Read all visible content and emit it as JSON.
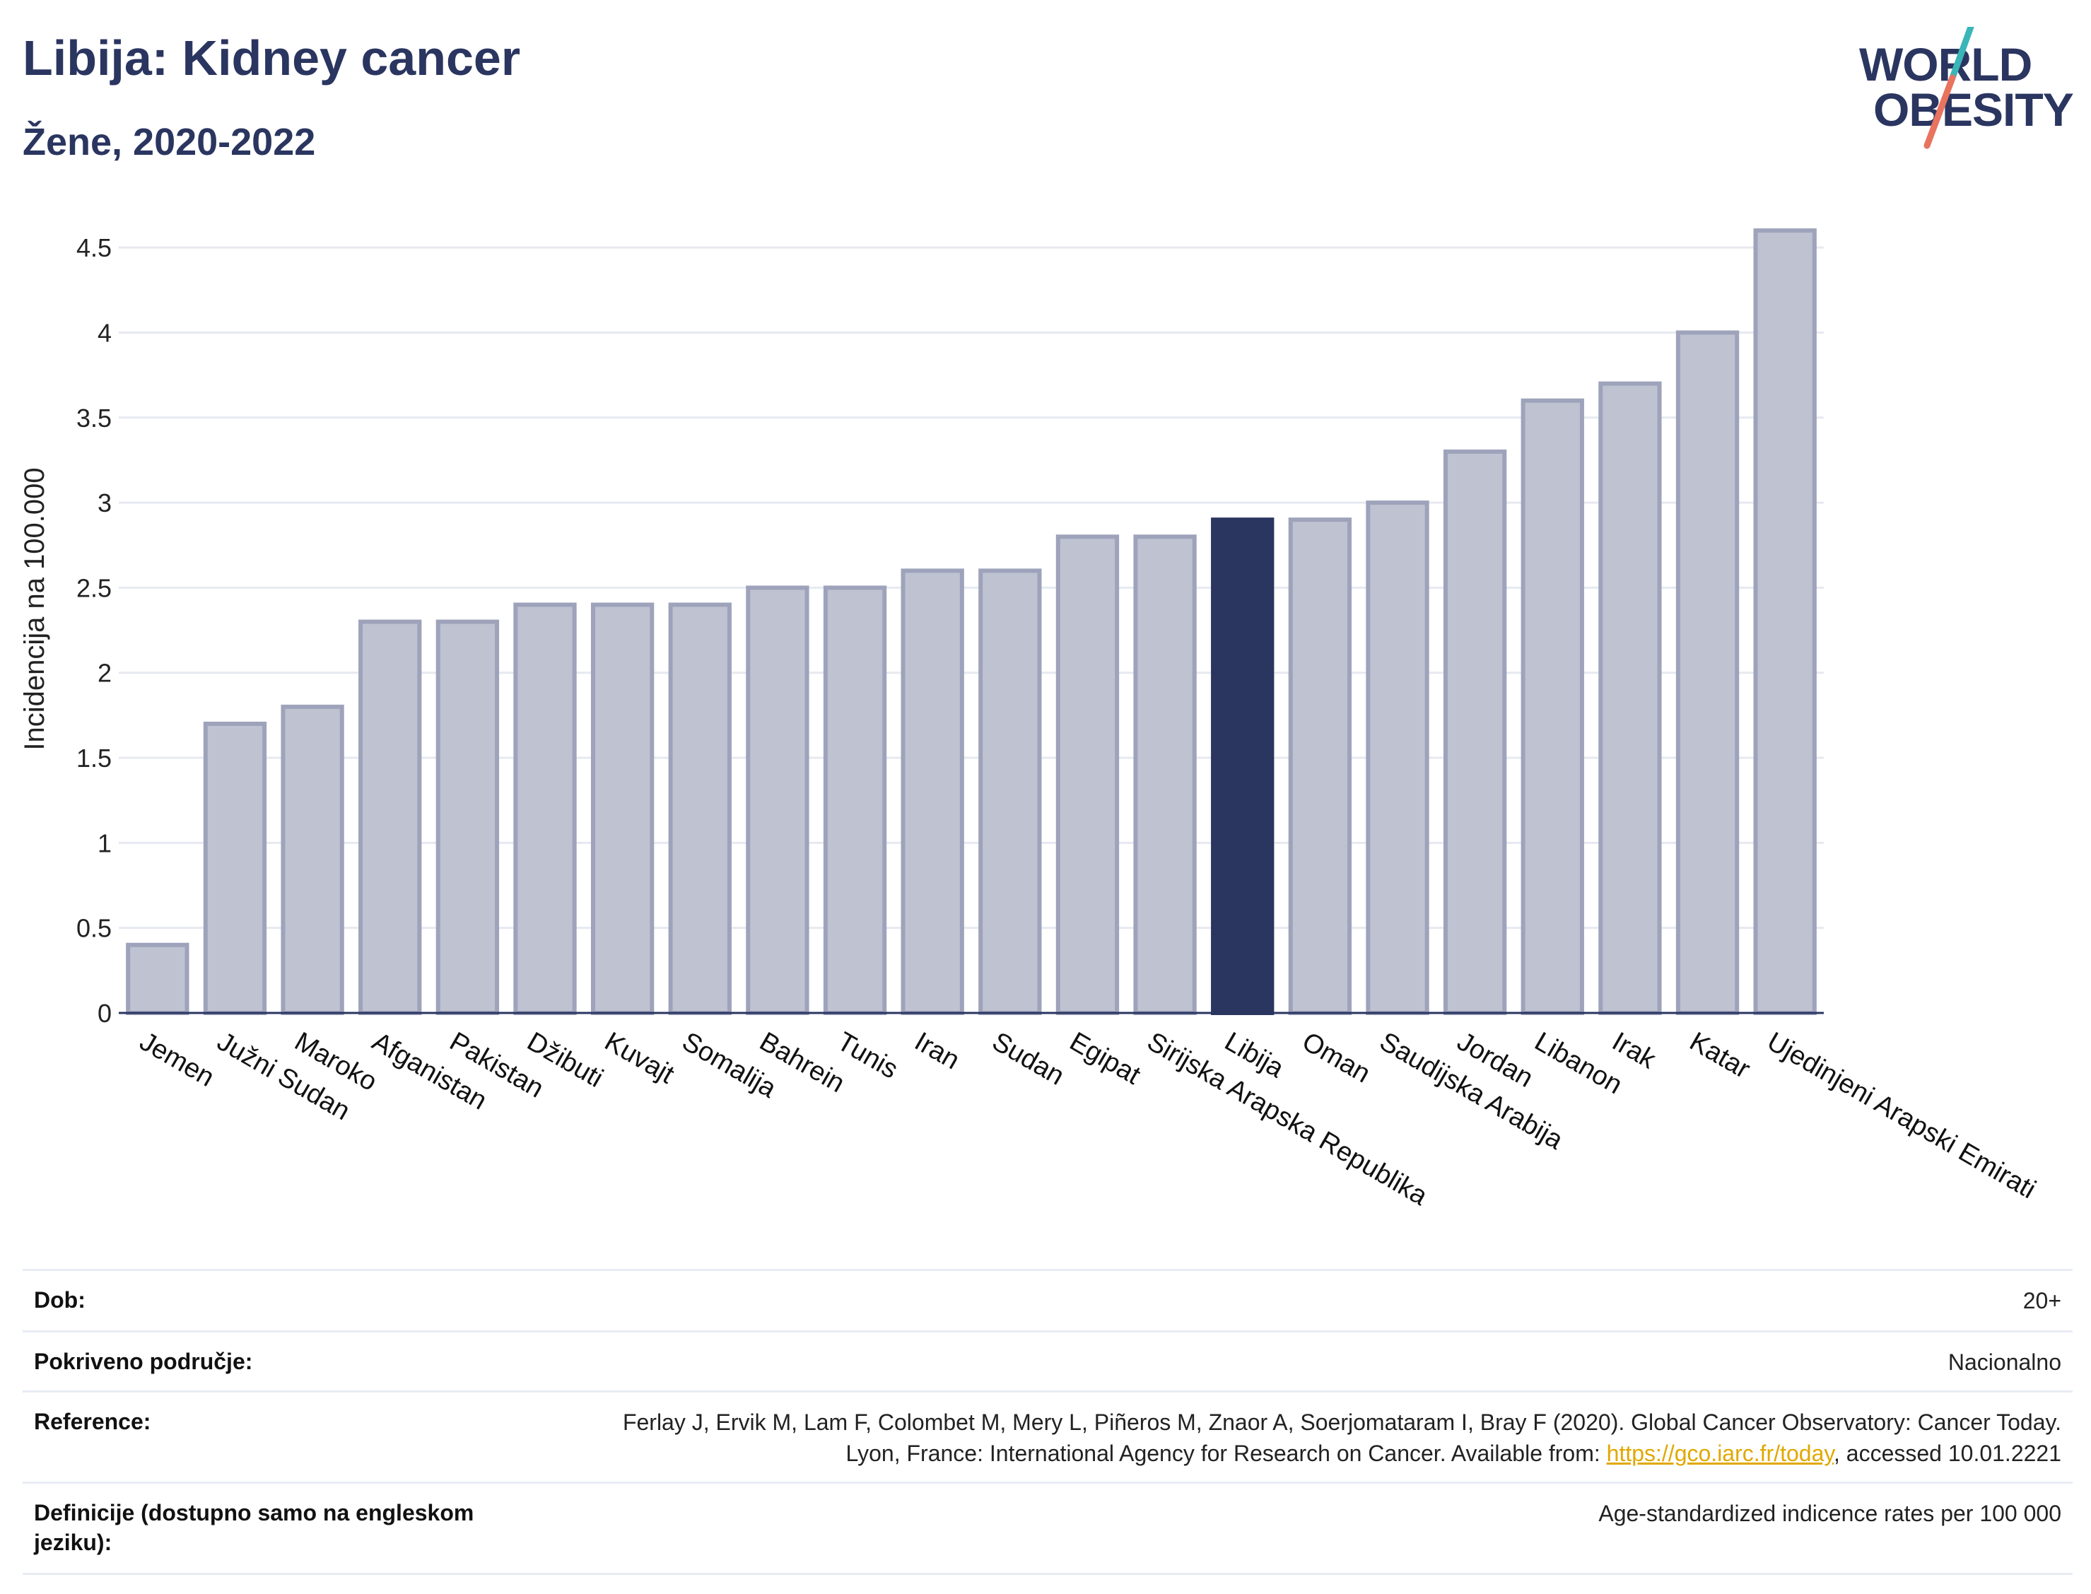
{
  "header": {
    "title": "Libija: Kidney cancer",
    "subtitle": "Žene, 2020-2022"
  },
  "logo": {
    "line1": "WORLD",
    "line2": "OBESITY",
    "accent_teal": "#3ab5b8",
    "accent_coral": "#e8735f"
  },
  "colors": {
    "bar": "#bfc2d1",
    "bar_stroke": "#9ea3bb",
    "highlight": "#2a3560",
    "grid": "#e6e9f0",
    "axis": "#2a3560"
  },
  "chart_data": {
    "type": "bar",
    "categories": [
      "Jemen",
      "Južni Sudan",
      "Maroko",
      "Afganistan",
      "Pakistan",
      "Džibuti",
      "Kuvajt",
      "Somalija",
      "Bahrein",
      "Tunis",
      "Iran",
      "Sudan",
      "Egipat",
      "Sirijska Arapska Republika",
      "Libija",
      "Oman",
      "Saudijska Arabija",
      "Jordan",
      "Libanon",
      "Irak",
      "Katar",
      "Ujedinjeni Arapski Emirati"
    ],
    "values": [
      0.4,
      1.7,
      1.8,
      2.3,
      2.3,
      2.4,
      2.4,
      2.4,
      2.5,
      2.5,
      2.6,
      2.6,
      2.8,
      2.8,
      2.9,
      2.9,
      3.0,
      3.3,
      3.6,
      3.7,
      4.0,
      4.6
    ],
    "highlight": "Libija",
    "ylabel": "Incidencija na 100.000",
    "ylim": [
      0,
      4.75
    ],
    "yticks": [
      0,
      0.5,
      1,
      1.5,
      2,
      2.5,
      3,
      3.5,
      4,
      4.5
    ],
    "ytick_labels": [
      "0",
      "0.5",
      "1",
      "1.5",
      "2",
      "2.5",
      "3",
      "3.5",
      "4",
      "4.5"
    ],
    "grid": true
  },
  "meta": {
    "rows": [
      {
        "label": "Dob:",
        "value": "20+"
      },
      {
        "label": "Pokriveno područje:",
        "value": "Nacionalno"
      },
      {
        "label": "Reference:",
        "value_pre": "Ferlay J, Ervik M, Lam F, Colombet M, Mery L, Piñeros M, Znaor A, Soerjomataram I, Bray F (2020). Global Cancer Observatory: Cancer Today. Lyon, France: International Agency for Research on Cancer. Available from: ",
        "link": "https://gco.iarc.fr/today",
        "value_post": ", accessed 10.01.2221"
      },
      {
        "label": "Definicije (dostupno samo na engleskom jeziku):",
        "value": "Age-standardized indicence rates per 100 000"
      }
    ]
  }
}
